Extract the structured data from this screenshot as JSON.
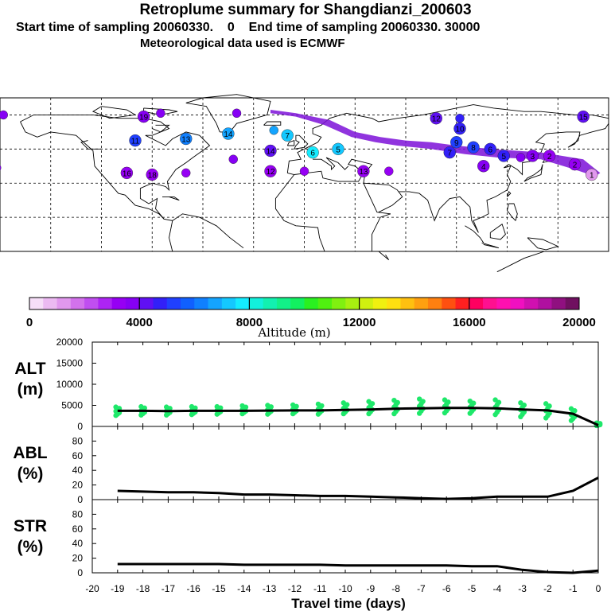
{
  "header": {
    "title": "Retroplume summary for Shangdianzi_200603",
    "subtitle1": "Start time of sampling 20060330.    0    End time of sampling 20060330. 30000",
    "subtitle2": "Meteorological data used is ECMWF"
  },
  "colors": {
    "plume": "#7c10d8",
    "alt_dots": "#1ee86a",
    "line": "#000000",
    "colorbar": [
      "#f6def8",
      "#ecbaf2",
      "#e198ee",
      "#d372ec",
      "#c04ef0",
      "#ad24f4",
      "#9600f4",
      "#8600f4",
      "#6010f4",
      "#3220f8",
      "#2040ff",
      "#1060ff",
      "#1080ff",
      "#14a4ff",
      "#14c8ff",
      "#14ecff",
      "#12f0dc",
      "#12f0b0",
      "#12f088",
      "#12f060",
      "#2af020",
      "#50f010",
      "#80f010",
      "#a8f010",
      "#d0f010",
      "#f0f010",
      "#ffe010",
      "#ffc010",
      "#ffa010",
      "#ff8010",
      "#ff5010",
      "#ff2020",
      "#ff0060",
      "#ff1090",
      "#ff10b0",
      "#f010c0",
      "#d010b0",
      "#b010a0",
      "#901080",
      "#701060"
    ]
  },
  "colorbar": {
    "ticks": [
      "0",
      "4000",
      "8000",
      "12000",
      "16000",
      "20000"
    ],
    "label": "Altitude (m)"
  },
  "chart_data": [
    {
      "type": "scatter",
      "name": "ALT panel",
      "ylabel": "ALT (m)",
      "ylim": [
        0,
        20000
      ],
      "yticks": [
        "20000",
        "15000",
        "10000",
        "5000",
        "0"
      ],
      "x": [
        -19,
        -18,
        -17,
        -16,
        -15,
        -14,
        -13,
        -12,
        -11,
        -10,
        -9,
        -8,
        -7,
        -6,
        -5,
        -4,
        -3,
        -2,
        -1,
        0
      ],
      "values": [
        3700,
        3700,
        3650,
        3700,
        3700,
        3700,
        3750,
        3800,
        3800,
        3900,
        4000,
        4200,
        4300,
        4400,
        4400,
        4300,
        4000,
        3800,
        3000,
        300
      ],
      "spread_low": [
        2600,
        2700,
        2700,
        2800,
        2900,
        3000,
        2900,
        3000,
        2900,
        3000,
        3000,
        3000,
        3100,
        3200,
        3100,
        2800,
        2300,
        2000,
        1400,
        200
      ],
      "spread_high": [
        4600,
        4700,
        4600,
        4700,
        4700,
        4900,
        5000,
        5100,
        5300,
        5600,
        5900,
        6200,
        6500,
        6300,
        6000,
        6300,
        5600,
        5400,
        4200,
        800
      ]
    },
    {
      "type": "line",
      "name": "ABL panel",
      "ylabel": "ABL (%)",
      "ylim": [
        0,
        100
      ],
      "yticks": [
        "80",
        "60",
        "40",
        "20",
        "0"
      ],
      "x": [
        -19,
        -18,
        -17,
        -16,
        -15,
        -14,
        -13,
        -12,
        -11,
        -10,
        -9,
        -8,
        -7,
        -6,
        -5,
        -4,
        -3,
        -2,
        -1,
        0
      ],
      "values": [
        12,
        11,
        10,
        10,
        9,
        7,
        7,
        6,
        5,
        5,
        4,
        3,
        2,
        1,
        2,
        4,
        4,
        4,
        12,
        30
      ]
    },
    {
      "type": "line",
      "name": "STR panel",
      "ylabel": "STR (%)",
      "ylim": [
        0,
        100
      ],
      "yticks": [
        "80",
        "60",
        "40",
        "20",
        "0"
      ],
      "x": [
        -19,
        -18,
        -17,
        -16,
        -15,
        -14,
        -13,
        -12,
        -11,
        -10,
        -9,
        -8,
        -7,
        -6,
        -5,
        -4,
        -3,
        -2,
        -1,
        0
      ],
      "values": [
        12,
        12,
        12,
        12,
        12,
        11,
        11,
        11,
        11,
        10,
        10,
        10,
        10,
        10,
        9,
        9,
        4,
        1,
        0,
        3
      ]
    }
  ],
  "x_axis": {
    "title": "Travel time (days)",
    "ticks": [
      "-20",
      "-19",
      "-18",
      "-17",
      "-16",
      "-15",
      "-14",
      "-13",
      "-12",
      "-11",
      "-10",
      "-9",
      "-8",
      "-7",
      "-6",
      "-5",
      "-4",
      "-3",
      "-2",
      "-1",
      "0"
    ]
  },
  "map": {
    "labels": [
      "12",
      "11",
      "10",
      "9",
      "8",
      "7",
      "6",
      "5",
      "4",
      "3",
      "2",
      "1",
      "15",
      "14",
      "13",
      "17",
      "16",
      "18",
      "19"
    ],
    "markers": [
      {
        "lon": -95,
        "lat": 69,
        "label": "19",
        "alt": 3800
      },
      {
        "lon": -85,
        "lat": 71,
        "label": "",
        "alt": 3800
      },
      {
        "lon": -40,
        "lat": 71,
        "label": "",
        "alt": 3600
      },
      {
        "lon": -100,
        "lat": 55,
        "label": "11",
        "alt": 5000
      },
      {
        "lon": -70,
        "lat": 56,
        "label": "13",
        "alt": 6000
      },
      {
        "lon": -45,
        "lat": 59,
        "label": "14",
        "alt": 6500
      },
      {
        "lon": -18,
        "lat": 61,
        "label": "",
        "alt": 6800
      },
      {
        "lon": -10,
        "lat": 58,
        "label": "7",
        "alt": 7200
      },
      {
        "lon": 5,
        "lat": 48,
        "label": "6",
        "alt": 7500
      },
      {
        "lon": 20,
        "lat": 50,
        "label": "5",
        "alt": 7000
      },
      {
        "lon": -105,
        "lat": 36,
        "label": "16",
        "alt": 3200
      },
      {
        "lon": -90,
        "lat": 35,
        "label": "18",
        "alt": 3400
      },
      {
        "lon": -70,
        "lat": 36,
        "label": "",
        "alt": 3300
      },
      {
        "lon": -42,
        "lat": 44,
        "label": "",
        "alt": 3500
      },
      {
        "lon": -20,
        "lat": 49,
        "label": "14",
        "alt": 4000
      },
      {
        "lon": -20,
        "lat": 37,
        "label": "12",
        "alt": 3200
      },
      {
        "lon": 0,
        "lat": 37,
        "label": "",
        "alt": 3100
      },
      {
        "lon": 35,
        "lat": 37,
        "label": "13",
        "alt": 3000
      },
      {
        "lon": 50,
        "lat": 37,
        "label": "",
        "alt": 3300
      },
      {
        "lon": 78,
        "lat": 68,
        "label": "12",
        "alt": 4300
      },
      {
        "lon": 92,
        "lat": 68,
        "label": "",
        "alt": 4800
      },
      {
        "lon": 92,
        "lat": 62,
        "label": "10",
        "alt": 4500
      },
      {
        "lon": 90,
        "lat": 54,
        "label": "9",
        "alt": 5000
      },
      {
        "lon": 100,
        "lat": 51,
        "label": "8",
        "alt": 5000
      },
      {
        "lon": 86,
        "lat": 48,
        "label": "7",
        "alt": 4800
      },
      {
        "lon": 110,
        "lat": 50,
        "label": "6",
        "alt": 4500
      },
      {
        "lon": 118,
        "lat": 46,
        "label": "5",
        "alt": 4500
      },
      {
        "lon": 106,
        "lat": 40,
        "label": "4",
        "alt": 3600
      },
      {
        "lon": 128,
        "lat": 45,
        "label": "",
        "alt": 3800
      },
      {
        "lon": 135,
        "lat": 46,
        "label": "3",
        "alt": 3600
      },
      {
        "lon": 145,
        "lat": 46,
        "label": "2",
        "alt": 3400
      },
      {
        "lon": 160,
        "lat": 41,
        "label": "2",
        "alt": 3000
      },
      {
        "lon": 170,
        "lat": 35,
        "label": "1",
        "alt": 1200
      },
      {
        "lon": 165,
        "lat": 69,
        "label": "15",
        "alt": 4000
      },
      {
        "lon": -178,
        "lat": 70,
        "label": "",
        "alt": 3600
      },
      {
        "lon": -182,
        "lat": 39,
        "label": "",
        "alt": 3700
      }
    ]
  }
}
